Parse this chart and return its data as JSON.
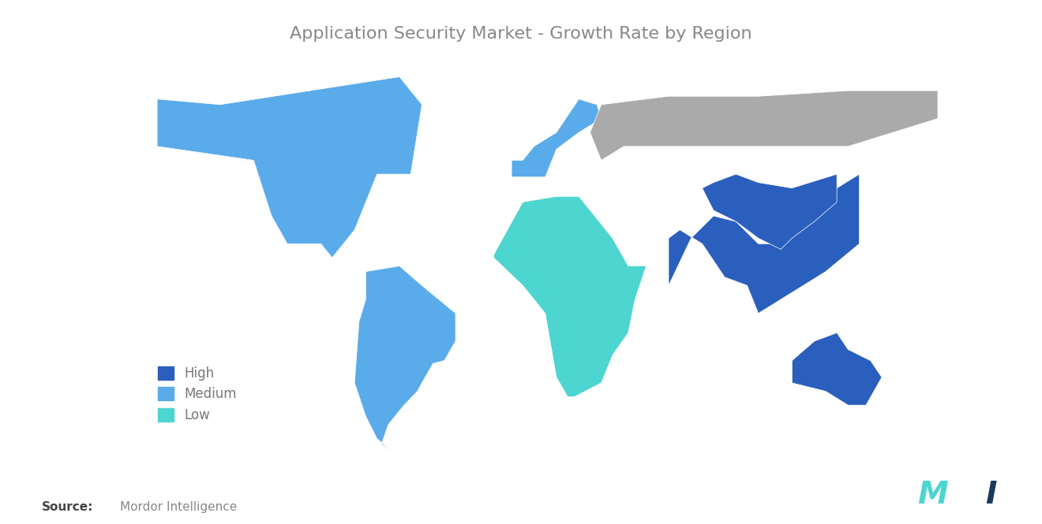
{
  "title": "Application Security Market - Growth Rate by Region",
  "title_color": "#888888",
  "title_fontsize": 16,
  "background_color": "#ffffff",
  "legend_items": [
    {
      "label": "High",
      "color": "#2b5fbe"
    },
    {
      "label": "Medium",
      "color": "#5aabea"
    },
    {
      "label": "Low",
      "color": "#4dd5d0"
    }
  ],
  "source_bold": "Source:",
  "source_text": "Mordor Intelligence",
  "colors": {
    "high": "#2b5fbe",
    "medium": "#5aabea",
    "low": "#4dd5d0",
    "gray": "#aaaaaa",
    "ocean": "#ffffff"
  }
}
